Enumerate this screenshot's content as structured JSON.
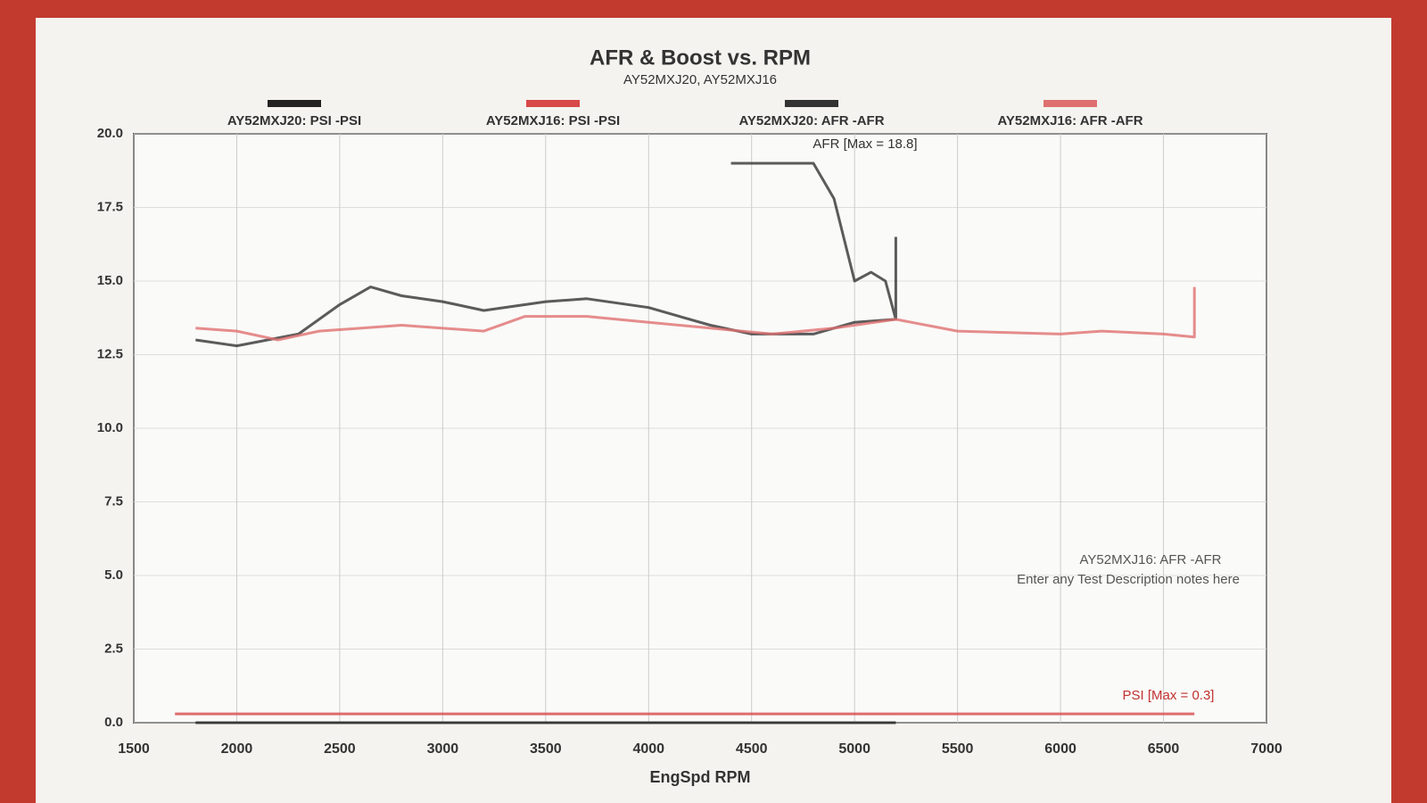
{
  "chart_data": {
    "type": "line",
    "title": "AFR & Boost vs. RPM",
    "subtitle": "AY52MXJ20, AY52MXJ16",
    "x_label": "EngSpd RPM",
    "xlim": [
      1500,
      7000
    ],
    "xticks": [
      1500,
      2000,
      2500,
      3000,
      3500,
      4000,
      4500,
      5000,
      5500,
      6000,
      6500,
      7000
    ],
    "ylim": [
      0,
      20
    ],
    "yticks": [
      {
        "value": 0,
        "label": "0.0"
      },
      {
        "value": 2.5,
        "label": "2.5"
      },
      {
        "value": 5,
        "label": "5.0"
      },
      {
        "value": 7.5,
        "label": "7.5"
      },
      {
        "value": 10,
        "label": "10.0"
      },
      {
        "value": 12.5,
        "label": "12.5"
      },
      {
        "value": 15,
        "label": "15.0"
      },
      {
        "value": 17.5,
        "label": "17.5"
      },
      {
        "value": 20,
        "label": "20.0"
      }
    ],
    "grid": true,
    "series": [
      {
        "name": "AY52MXJ20: PSI  -PSI",
        "color": "#222222",
        "x": [
          1800,
          2500,
          3500,
          4500,
          5200
        ],
        "values": [
          0,
          0,
          0,
          0,
          0
        ]
      },
      {
        "name": "AY52MXJ16: PSI  -PSI",
        "color": "#d84848",
        "x": [
          1700,
          2500,
          3500,
          4500,
          5500,
          6500,
          6650
        ],
        "values": [
          0.3,
          0.3,
          0.3,
          0.3,
          0.3,
          0.3,
          0.3
        ]
      },
      {
        "name": "AY52MXJ20: AFR  -AFR",
        "color": "#333333",
        "x": [
          1800,
          2000,
          2300,
          2500,
          2650,
          2800,
          3000,
          3200,
          3500,
          3700,
          4000,
          4300,
          4500,
          4800,
          5000,
          5200,
          5200,
          null,
          4400,
          4800,
          4900,
          5000,
          5080,
          5150,
          5200
        ],
        "values": [
          13.0,
          12.8,
          13.2,
          14.2,
          14.8,
          14.5,
          14.3,
          14.0,
          14.3,
          14.4,
          14.1,
          13.5,
          13.2,
          13.2,
          13.6,
          13.7,
          16.5,
          null,
          19.0,
          19.0,
          17.8,
          15.0,
          15.3,
          15.0,
          13.7
        ]
      },
      {
        "name": "AY52MXJ16: AFR  -AFR",
        "color": "#e07070",
        "x": [
          1800,
          2000,
          2200,
          2400,
          2800,
          3200,
          3400,
          3700,
          4000,
          4300,
          4600,
          4900,
          5200,
          5500,
          6000,
          6200,
          6500,
          6650,
          6650
        ],
        "values": [
          13.4,
          13.3,
          13.0,
          13.3,
          13.5,
          13.3,
          13.8,
          13.8,
          13.6,
          13.4,
          13.2,
          13.4,
          13.7,
          13.3,
          13.2,
          13.3,
          13.2,
          13.1,
          14.8
        ]
      }
    ],
    "annotations": [
      "AFR  [Max = 18.8]",
      "PSI  [Max = 0.3]",
      "AY52MXJ16: AFR  -AFR",
      "Enter any Test Description notes here"
    ]
  }
}
